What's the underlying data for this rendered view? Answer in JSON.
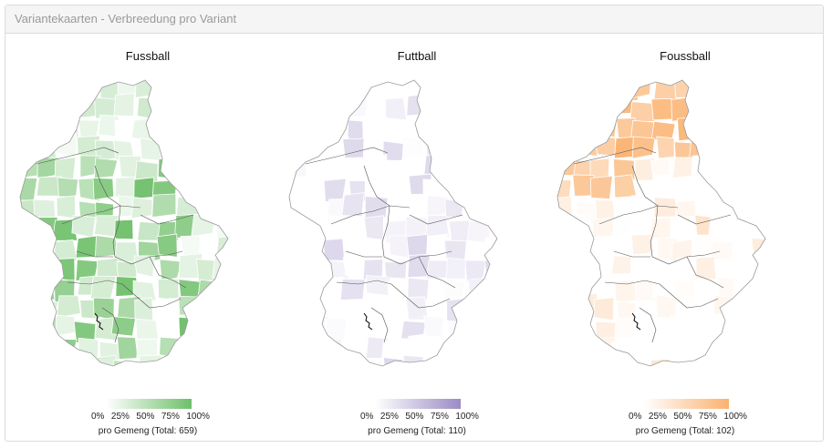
{
  "panel": {
    "title": "Variantekaarten - Verbreedung pro Variant"
  },
  "maps": [
    {
      "title": "Fussball",
      "color": "#6fbf6a",
      "legend": {
        "ticks": [
          "0%",
          "25%",
          "50%",
          "75%",
          "100%"
        ],
        "caption": "pro Gemeng (Total: 659)"
      }
    },
    {
      "title": "Futtball",
      "color": "#9b8cc4",
      "legend": {
        "ticks": [
          "0%",
          "25%",
          "50%",
          "75%",
          "100%"
        ],
        "caption": "pro Gemeng (Total: 110)"
      }
    },
    {
      "title": "Foussball",
      "color": "#fbb270",
      "legend": {
        "ticks": [
          "0%",
          "25%",
          "50%",
          "75%",
          "100%"
        ],
        "caption": "pro Gemeng (Total: 102)"
      }
    }
  ]
}
